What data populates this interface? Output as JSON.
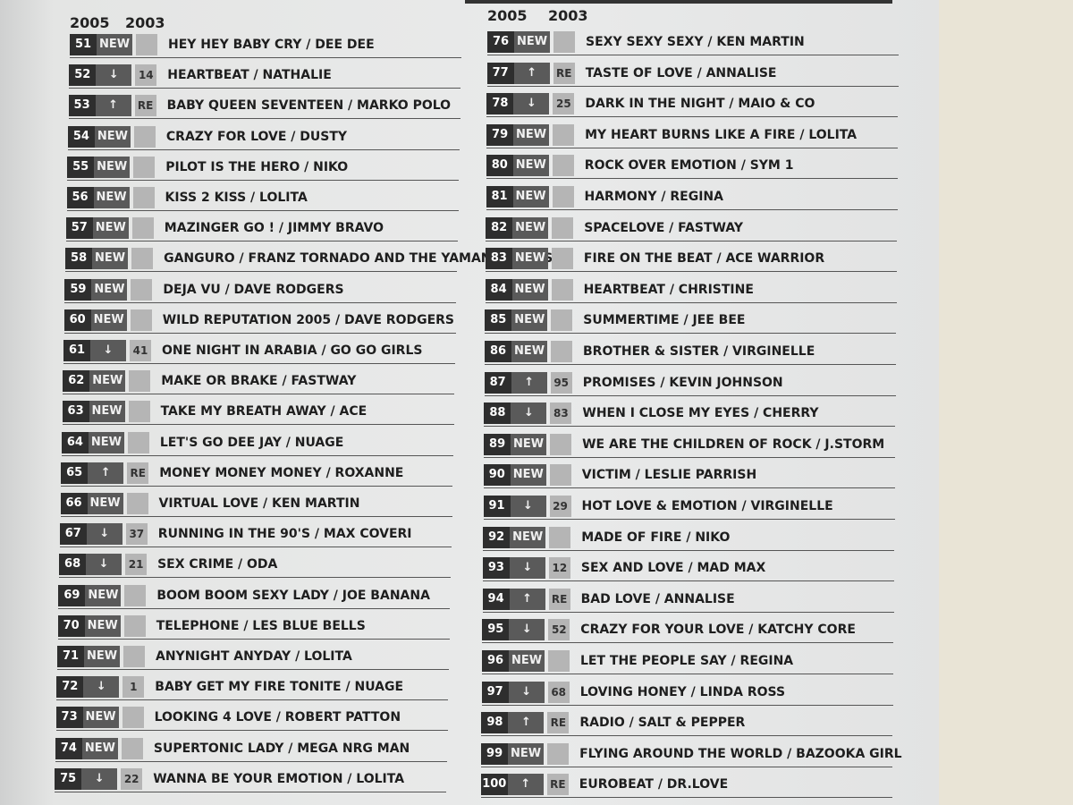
{
  "columns": [
    {
      "header_a": "2005",
      "header_b": "2003",
      "rows": [
        {
          "rank": 51,
          "move": "NEW",
          "title": "HEY HEY BABY CRY / DEE DEE"
        },
        {
          "rank": 52,
          "move": "↓",
          "prev": "14",
          "title": "HEARTBEAT / NATHALIE"
        },
        {
          "rank": 53,
          "move": "↑",
          "prev": "RE",
          "title": "BABY QUEEN SEVENTEEN / MARKO POLO"
        },
        {
          "rank": 54,
          "move": "NEW",
          "title": "CRAZY FOR LOVE / DUSTY"
        },
        {
          "rank": 55,
          "move": "NEW",
          "title": "PILOT IS THE HERO / NIKO"
        },
        {
          "rank": 56,
          "move": "NEW",
          "title": "KISS 2 KISS / LOLITA"
        },
        {
          "rank": 57,
          "move": "NEW",
          "title": "MAZINGER GO ! / JIMMY BRAVO"
        },
        {
          "rank": 58,
          "move": "NEW",
          "title": "GANGURO / FRANZ TORNADO AND THE YAMANBA-GALS"
        },
        {
          "rank": 59,
          "move": "NEW",
          "title": "DEJA VU / DAVE RODGERS"
        },
        {
          "rank": 60,
          "move": "NEW",
          "title": "WILD REPUTATION 2005 / DAVE RODGERS"
        },
        {
          "rank": 61,
          "move": "↓",
          "prev": "41",
          "title": "ONE NIGHT IN ARABIA / GO GO GIRLS"
        },
        {
          "rank": 62,
          "move": "NEW",
          "title": "MAKE OR BRAKE / FASTWAY"
        },
        {
          "rank": 63,
          "move": "NEW",
          "title": "TAKE MY BREATH AWAY / ACE"
        },
        {
          "rank": 64,
          "move": "NEW",
          "title": "LET'S GO DEE JAY / NUAGE"
        },
        {
          "rank": 65,
          "move": "↑",
          "prev": "RE",
          "title": "MONEY MONEY MONEY / ROXANNE"
        },
        {
          "rank": 66,
          "move": "NEW",
          "title": "VIRTUAL LOVE / KEN MARTIN"
        },
        {
          "rank": 67,
          "move": "↓",
          "prev": "37",
          "title": "RUNNING IN THE 90'S / MAX COVERI"
        },
        {
          "rank": 68,
          "move": "↓",
          "prev": "21",
          "title": "SEX CRIME / ODA"
        },
        {
          "rank": 69,
          "move": "NEW",
          "title": "BOOM BOOM SEXY LADY / JOE BANANA"
        },
        {
          "rank": 70,
          "move": "NEW",
          "title": "TELEPHONE / LES BLUE BELLS"
        },
        {
          "rank": 71,
          "move": "NEW",
          "title": "ANYNIGHT ANYDAY / LOLITA"
        },
        {
          "rank": 72,
          "move": "↓",
          "prev": "1",
          "title": "BABY GET MY FIRE TONITE / NUAGE"
        },
        {
          "rank": 73,
          "move": "NEW",
          "title": "LOOKING 4 LOVE / ROBERT PATTON"
        },
        {
          "rank": 74,
          "move": "NEW",
          "title": "SUPERTONIC LADY / MEGA NRG MAN"
        },
        {
          "rank": 75,
          "move": "↓",
          "prev": "22",
          "title": "WANNA BE YOUR EMOTION / LOLITA"
        }
      ]
    },
    {
      "header_a": "2005",
      "header_b": "2003",
      "rows": [
        {
          "rank": 76,
          "move": "NEW",
          "title": "SEXY SEXY SEXY / KEN MARTIN"
        },
        {
          "rank": 77,
          "move": "↑",
          "prev": "RE",
          "title": "TASTE OF LOVE / ANNALISE"
        },
        {
          "rank": 78,
          "move": "↓",
          "prev": "25",
          "title": "DARK IN THE NIGHT / MAIO & CO"
        },
        {
          "rank": 79,
          "move": "NEW",
          "title": "MY HEART BURNS LIKE A FIRE / LOLITA"
        },
        {
          "rank": 80,
          "move": "NEW",
          "title": "ROCK OVER EMOTION / SYM 1"
        },
        {
          "rank": 81,
          "move": "NEW",
          "title": "HARMONY / REGINA"
        },
        {
          "rank": 82,
          "move": "NEW",
          "title": "SPACELOVE / FASTWAY"
        },
        {
          "rank": 83,
          "move": "NEW",
          "title": "FIRE ON THE BEAT / ACE WARRIOR"
        },
        {
          "rank": 84,
          "move": "NEW",
          "title": "HEARTBEAT / CHRISTINE"
        },
        {
          "rank": 85,
          "move": "NEW",
          "title": "SUMMERTIME / JEE BEE"
        },
        {
          "rank": 86,
          "move": "NEW",
          "title": "BROTHER & SISTER / VIRGINELLE"
        },
        {
          "rank": 87,
          "move": "↑",
          "prev": "95",
          "title": "PROMISES / KEVIN JOHNSON"
        },
        {
          "rank": 88,
          "move": "↓",
          "prev": "83",
          "title": "WHEN I CLOSE MY EYES / CHERRY"
        },
        {
          "rank": 89,
          "move": "NEW",
          "title": "WE ARE THE CHILDREN OF ROCK / J.STORM"
        },
        {
          "rank": 90,
          "move": "NEW",
          "title": "VICTIM / LESLIE PARRISH"
        },
        {
          "rank": 91,
          "move": "↓",
          "prev": "29",
          "title": "HOT LOVE & EMOTION / VIRGINELLE"
        },
        {
          "rank": 92,
          "move": "NEW",
          "title": "MADE OF FIRE / NIKO"
        },
        {
          "rank": 93,
          "move": "↓",
          "prev": "12",
          "title": "SEX AND LOVE / MAD MAX"
        },
        {
          "rank": 94,
          "move": "↑",
          "prev": "RE",
          "title": "BAD LOVE / ANNALISE"
        },
        {
          "rank": 95,
          "move": "↓",
          "prev": "52",
          "title": "CRAZY FOR YOUR LOVE / KATCHY CORE"
        },
        {
          "rank": 96,
          "move": "NEW",
          "title": "LET THE PEOPLE SAY / REGINA"
        },
        {
          "rank": 97,
          "move": "↓",
          "prev": "68",
          "title": "LOVING HONEY / LINDA ROSS"
        },
        {
          "rank": 98,
          "move": "↑",
          "prev": "RE",
          "title": "RADIO / SALT & PEPPER"
        },
        {
          "rank": 99,
          "move": "NEW",
          "title": "FLYING AROUND THE WORLD / BAZOOKA GIRL"
        },
        {
          "rank": 100,
          "move": "↑",
          "prev": "RE",
          "title": "EUROBEAT / DR.LOVE"
        }
      ]
    }
  ]
}
